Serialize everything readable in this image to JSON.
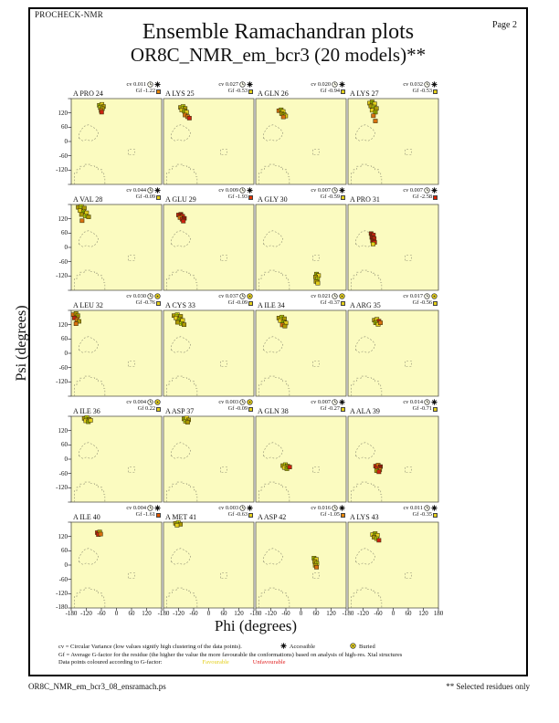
{
  "page": {
    "app_name": "PROCHECK-NMR",
    "title": "Ensemble Ramachandran plots",
    "subtitle": "OR8C_NMR_em_bcr3 (20 models)**",
    "page_label": "Page  2",
    "footer_left": "OR8C_NMR_em_bcr3_08_ensramach.ps",
    "footer_right": "** Selected residues only"
  },
  "axes": {
    "xlabel": "Phi (degrees)",
    "ylabel": "Psi (degrees)",
    "x_tick_values": [
      -180,
      -120,
      -60,
      0,
      60,
      120
    ],
    "x_tick_last": 180,
    "y_tick_values": [
      120,
      60,
      0,
      -60,
      -120
    ],
    "y_tick_bottom": -180,
    "x_range": [
      -180,
      180
    ],
    "y_range": [
      -180,
      180
    ]
  },
  "legend": {
    "line1": "cv = Circular Variance (low values signify high clustering of the data points).",
    "accessible_label": "Accessible",
    "buried_label": "Buried",
    "line2": "Gf = Average G-factor for the residue (the higher the value the more favourable the conformations)  based on analysis of high-res. Xtal structures",
    "line3": "Data points coloured according to G-factor:",
    "favourable_label": "Favourable",
    "unfavourable_label": "Unfavourable"
  },
  "colors": {
    "plot_bg": "#FBFBC0",
    "region_line": "#8d8d72",
    "plot_border": "#55554a",
    "favourable_text": "#E3CE1B",
    "unfavourable_text": "#E02020",
    "point_outline": "#3a3208",
    "cross": "#6A9A00",
    "points": {
      "y": "#E3CE1B",
      "o": "#AD9A05",
      "or": "#D97010",
      "r": "#CC2211",
      "dr": "#8E1A0E"
    }
  },
  "chart_data": {
    "type": "scatter",
    "title": "Ensemble Ramachandran plots",
    "xlabel": "Phi (degrees)",
    "ylabel": "Psi (degrees)",
    "xlim": [
      -180,
      180
    ],
    "ylim": [
      -180,
      180
    ],
    "grid": false,
    "models_per_residue": 20,
    "point_color_legend": {
      "y": "favourable yellow",
      "o": "favourable dark-yellow",
      "or": "intermediate orange",
      "r": "unfavourable red",
      "dr": "unfavourable dark-red"
    },
    "plots": [
      {
        "residue": "A PRO 24",
        "cv": "0.011",
        "gf": "-1.22",
        "access": "accessible",
        "gf_color": "#E8860B",
        "points": [
          [
            -68,
            152,
            "o",
            1
          ],
          [
            -58,
            156,
            "y",
            0
          ],
          [
            -52,
            147,
            "o",
            0
          ],
          [
            -64,
            142,
            "y",
            1
          ],
          [
            -56,
            138,
            "o",
            0
          ],
          [
            -61,
            130,
            "or",
            0
          ],
          [
            -59,
            123,
            "r",
            0
          ]
        ]
      },
      {
        "residue": "A LYS 25",
        "cv": "0.027",
        "gf": "-0.53",
        "access": "accessible",
        "gf_color": "#E3CE1B",
        "points": [
          [
            -112,
            143,
            "o",
            0
          ],
          [
            -102,
            147,
            "y",
            1
          ],
          [
            -94,
            139,
            "o",
            0
          ],
          [
            -107,
            132,
            "y",
            0
          ],
          [
            -97,
            127,
            "o",
            1
          ],
          [
            -88,
            123,
            "y",
            0
          ],
          [
            -94,
            111,
            "or",
            0
          ],
          [
            -84,
            104,
            "or",
            0
          ],
          [
            -77,
            98,
            "r",
            0
          ]
        ]
      },
      {
        "residue": "A GLN 26",
        "cv": "0.020",
        "gf": "-0.94",
        "access": "accessible",
        "gf_color": "#E3CE1B",
        "points": [
          [
            -88,
            129,
            "or",
            0
          ],
          [
            -79,
            133,
            "o",
            1
          ],
          [
            -71,
            126,
            "y",
            0
          ],
          [
            -77,
            117,
            "o",
            0
          ],
          [
            -67,
            113,
            "o",
            1
          ],
          [
            -61,
            107,
            "y",
            0
          ],
          [
            -70,
            103,
            "or",
            0
          ]
        ]
      },
      {
        "residue": "A LYS 27",
        "cv": "0.032",
        "gf": "-0.53",
        "access": "accessible",
        "gf_color": "#E3CE1B",
        "points": [
          [
            -94,
            161,
            "y",
            0
          ],
          [
            -84,
            166,
            "o",
            1
          ],
          [
            -74,
            158,
            "y",
            0
          ],
          [
            -89,
            149,
            "o",
            0
          ],
          [
            -77,
            145,
            "y",
            1
          ],
          [
            -67,
            139,
            "o",
            0
          ],
          [
            -84,
            131,
            "y",
            0
          ],
          [
            -71,
            123,
            "o",
            1
          ],
          [
            -79,
            108,
            "or",
            0
          ],
          [
            -71,
            86,
            "or",
            0
          ]
        ]
      },
      {
        "residue": "A VAL 28",
        "cv": "0.044",
        "gf": "-0.09",
        "access": "accessible",
        "gf_color": "#E3CE1B",
        "points": [
          [
            -152,
            168,
            "o",
            0
          ],
          [
            -140,
            172,
            "y",
            1
          ],
          [
            -128,
            165,
            "o",
            0
          ],
          [
            -145,
            155,
            "y",
            0
          ],
          [
            -131,
            150,
            "o",
            1
          ],
          [
            -119,
            145,
            "y",
            0
          ],
          [
            -139,
            138,
            "o",
            0
          ],
          [
            -124,
            132,
            "y",
            1
          ],
          [
            -111,
            128,
            "o",
            0
          ],
          [
            -137,
            112,
            "or",
            0
          ]
        ]
      },
      {
        "residue": "A GLU 29",
        "cv": "0.009",
        "gf": "-1.93",
        "access": "accessible",
        "gf_color": "#DD3300",
        "points": [
          [
            -120,
            136,
            "r",
            0
          ],
          [
            -111,
            139,
            "dr",
            0
          ],
          [
            -104,
            131,
            "r",
            0
          ],
          [
            -114,
            125,
            "or",
            0
          ],
          [
            -106,
            118,
            "r",
            0
          ],
          [
            -97,
            122,
            "dr",
            0
          ],
          [
            -101,
            110,
            "r",
            0
          ]
        ]
      },
      {
        "residue": "A GLY 30",
        "cv": "0.007",
        "gf": "-0.59",
        "access": "accessible",
        "gf_color": "#E3CE1B",
        "points": [
          [
            62,
            -112,
            "o",
            1
          ],
          [
            70,
            -118,
            "y",
            0
          ],
          [
            58,
            -124,
            "o",
            0
          ],
          [
            66,
            -133,
            "y",
            1
          ],
          [
            60,
            -143,
            "o",
            0
          ],
          [
            67,
            -150,
            "y",
            0
          ]
        ]
      },
      {
        "residue": "A PRO 31",
        "cv": "0.007",
        "gf": "-2.58",
        "access": "accessible",
        "gf_color": "#DD2200",
        "points": [
          [
            -88,
            58,
            "dr",
            0
          ],
          [
            -79,
            52,
            "r",
            0
          ],
          [
            -85,
            42,
            "dr",
            0
          ],
          [
            -76,
            37,
            "r",
            0
          ],
          [
            -82,
            27,
            "dr",
            0
          ],
          [
            -74,
            21,
            "r",
            0
          ],
          [
            -80,
            14,
            "y",
            0
          ]
        ]
      },
      {
        "residue": "A LEU 32",
        "cv": "0.030",
        "gf": "-0.76",
        "access": "buried",
        "gf_color": "#E3CE1B",
        "points": [
          [
            -172,
            162,
            "or",
            0
          ],
          [
            -161,
            167,
            "o",
            0
          ],
          [
            -154,
            158,
            "or",
            1
          ],
          [
            -167,
            148,
            "r",
            0
          ],
          [
            -157,
            141,
            "or",
            0
          ],
          [
            -149,
            134,
            "o",
            0
          ],
          [
            -161,
            124,
            "or",
            0
          ]
        ]
      },
      {
        "residue": "A CYS 33",
        "cv": "0.037",
        "gf": "-0.09",
        "access": "buried",
        "gf_color": "#E3CE1B",
        "points": [
          [
            -138,
            158,
            "o",
            0
          ],
          [
            -125,
            162,
            "y",
            1
          ],
          [
            -112,
            155,
            "o",
            0
          ],
          [
            -130,
            148,
            "y",
            0
          ],
          [
            -117,
            142,
            "o",
            1
          ],
          [
            -104,
            138,
            "y",
            0
          ],
          [
            -124,
            130,
            "o",
            0
          ],
          [
            -109,
            125,
            "y",
            1
          ],
          [
            -98,
            120,
            "o",
            0
          ]
        ]
      },
      {
        "residue": "A ILE 34",
        "cv": "0.021",
        "gf": "-0.37",
        "access": "buried",
        "gf_color": "#E3CE1B",
        "points": [
          [
            -88,
            148,
            "o",
            0
          ],
          [
            -76,
            152,
            "y",
            1
          ],
          [
            -66,
            145,
            "o",
            0
          ],
          [
            -82,
            137,
            "y",
            0
          ],
          [
            -70,
            131,
            "o",
            1
          ],
          [
            -60,
            127,
            "y",
            0
          ],
          [
            -74,
            119,
            "or",
            0
          ],
          [
            -64,
            114,
            "o",
            0
          ]
        ]
      },
      {
        "residue": "A ARG 35",
        "cv": "0.017",
        "gf": "-0.56",
        "access": "buried",
        "gf_color": "#E3CE1B",
        "points": [
          [
            -75,
            139,
            "o",
            0
          ],
          [
            -65,
            143,
            "y",
            0
          ],
          [
            -57,
            135,
            "r",
            0
          ],
          [
            -70,
            128,
            "o",
            1
          ],
          [
            -60,
            121,
            "y",
            0
          ],
          [
            -51,
            128,
            "or",
            0
          ]
        ]
      },
      {
        "residue": "A ILE 36",
        "cv": "0.004",
        "gf": "0.22",
        "access": "buried",
        "gf_color": "#E3CE1B",
        "points": [
          [
            -128,
            171,
            "o",
            0
          ],
          [
            -118,
            175,
            "y",
            1
          ],
          [
            -109,
            167,
            "o",
            0
          ],
          [
            -122,
            161,
            "y",
            0
          ],
          [
            -112,
            157,
            "o",
            1
          ],
          [
            -103,
            163,
            "y",
            0
          ]
        ]
      },
      {
        "residue": "A ASP 37",
        "cv": "0.003",
        "gf": "-0.09",
        "access": "buried",
        "gf_color": "#E3CE1B",
        "points": [
          [
            -98,
            169,
            "o",
            1
          ],
          [
            -88,
            173,
            "y",
            0
          ],
          [
            -80,
            165,
            "o",
            0
          ],
          [
            -92,
            159,
            "y",
            1
          ],
          [
            -84,
            155,
            "o",
            0
          ]
        ]
      },
      {
        "residue": "A GLN 38",
        "cv": "0.007",
        "gf": "-0.27",
        "access": "accessible",
        "gf_color": "#E3CE1B",
        "points": [
          [
            -72,
            -27,
            "o",
            0
          ],
          [
            -62,
            -23,
            "y",
            1
          ],
          [
            -53,
            -29,
            "o",
            0
          ],
          [
            -66,
            -35,
            "y",
            0
          ],
          [
            -56,
            -40,
            "o",
            1
          ],
          [
            -45,
            -33,
            "r",
            0
          ]
        ]
      },
      {
        "residue": "A ALA 39",
        "cv": "0.014",
        "gf": "-0.71",
        "access": "accessible",
        "gf_color": "#E3CE1B",
        "points": [
          [
            -70,
            -29,
            "r",
            0
          ],
          [
            -60,
            -25,
            "or",
            0
          ],
          [
            -51,
            -31,
            "dr",
            0
          ],
          [
            -64,
            -38,
            "r",
            0
          ],
          [
            -54,
            -44,
            "or",
            0
          ],
          [
            -66,
            -48,
            "o",
            0
          ],
          [
            -57,
            -53,
            "r",
            0
          ]
        ]
      },
      {
        "residue": "A ILE 40",
        "cv": "0.004",
        "gf": "-1.61",
        "access": "accessible",
        "gf_color": "#E05500",
        "points": [
          [
            -76,
            136,
            "r",
            0
          ],
          [
            -67,
            139,
            "o",
            0
          ],
          [
            -72,
            128,
            "r",
            0
          ],
          [
            -63,
            130,
            "or",
            0
          ]
        ]
      },
      {
        "residue": "A MET 41",
        "cv": "0.003",
        "gf": "-0.63",
        "access": "accessible",
        "gf_color": "#E3CE1B",
        "points": [
          [
            -132,
            175,
            "o",
            0
          ],
          [
            -121,
            178,
            "y",
            1
          ],
          [
            -113,
            171,
            "o",
            0
          ],
          [
            -126,
            167,
            "y",
            0
          ]
        ]
      },
      {
        "residue": "A ASP 42",
        "cv": "0.016",
        "gf": "-1.05",
        "access": "accessible",
        "gf_color": "#E8860B",
        "points": [
          [
            52,
            29,
            "o",
            1
          ],
          [
            61,
            24,
            "y",
            0
          ],
          [
            55,
            15,
            "o",
            0
          ],
          [
            63,
            7,
            "y",
            1
          ],
          [
            57,
            -1,
            "o",
            0
          ],
          [
            62,
            -9,
            "or",
            0
          ]
        ]
      },
      {
        "residue": "A LYS 43",
        "cv": "0.011",
        "gf": "-0.35",
        "access": "accessible",
        "gf_color": "#E3CE1B",
        "points": [
          [
            -82,
            128,
            "y",
            0
          ],
          [
            -72,
            132,
            "o",
            1
          ],
          [
            -63,
            125,
            "y",
            0
          ],
          [
            -76,
            117,
            "o",
            0
          ],
          [
            -66,
            111,
            "y",
            1
          ],
          [
            -57,
            104,
            "r",
            0
          ]
        ]
      }
    ]
  }
}
